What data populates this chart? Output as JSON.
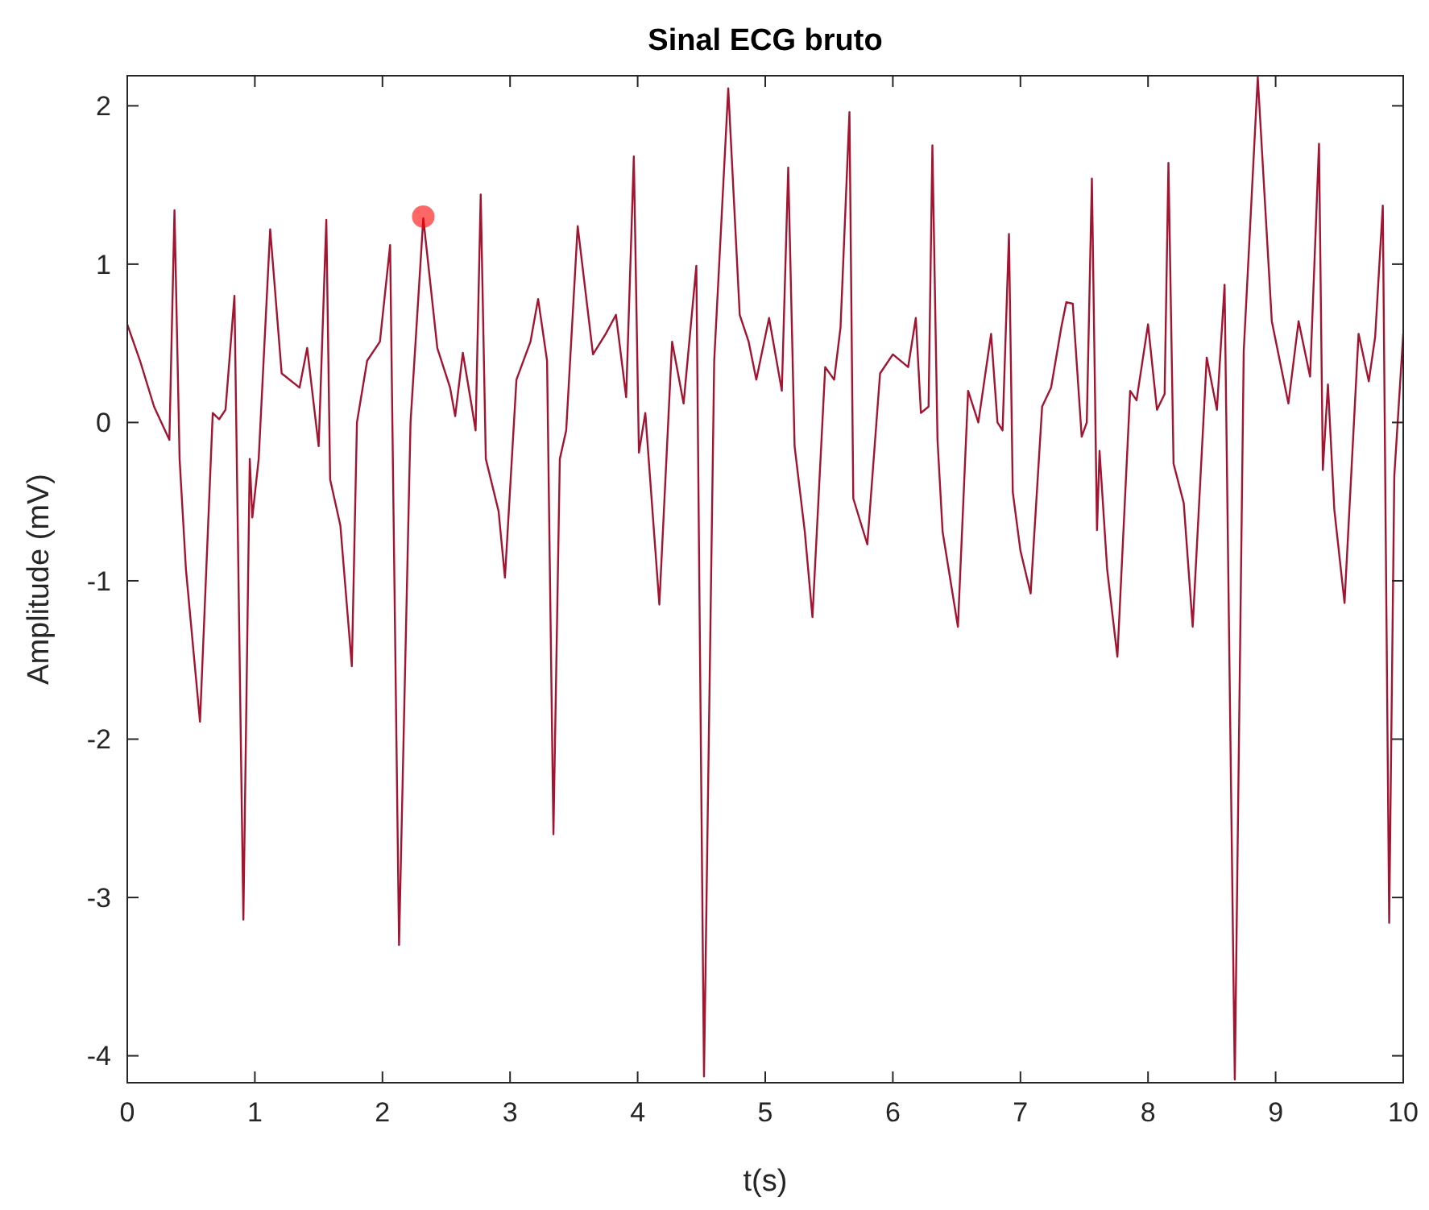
{
  "chart_data": {
    "type": "line",
    "title": "Sinal ECG bruto",
    "xlabel": "t(s)",
    "ylabel": "Amplitude (mV)",
    "xlim": [
      0,
      10
    ],
    "ylim": [
      -4.17,
      2.19
    ],
    "xticks": [
      0,
      1,
      2,
      3,
      4,
      5,
      6,
      7,
      8,
      9,
      10
    ],
    "yticks": [
      -4,
      -3,
      -2,
      -1,
      0,
      1,
      2
    ],
    "grid": false,
    "series": [
      {
        "color": "#a2142f",
        "x": [
          0,
          0.1,
          0.21,
          0.33,
          0.37,
          0.41,
          0.46,
          0.57,
          0.67,
          0.72,
          0.77,
          0.84,
          0.91,
          0.96,
          0.98,
          1.03,
          1.12,
          1.21,
          1.35,
          1.41,
          1.5,
          1.56,
          1.59,
          1.67,
          1.76,
          1.8,
          1.88,
          1.98,
          2.06,
          2.13,
          2.22,
          2.32,
          2.43,
          2.53,
          2.57,
          2.63,
          2.7,
          2.73,
          2.77,
          2.81,
          2.91,
          2.96,
          3.05,
          3.16,
          3.22,
          3.29,
          3.34,
          3.39,
          3.44,
          3.53,
          3.65,
          3.75,
          3.83,
          3.91,
          3.97,
          4.01,
          4.06,
          4.17,
          4.27,
          4.36,
          4.46,
          4.52,
          4.6,
          4.71,
          4.8,
          4.87,
          4.93,
          5.03,
          5.13,
          5.18,
          5.23,
          5.31,
          5.37,
          5.47,
          5.54,
          5.59,
          5.66,
          5.69,
          5.8,
          5.9,
          6,
          6.12,
          6.18,
          6.22,
          6.28,
          6.31,
          6.35,
          6.39,
          6.51,
          6.59,
          6.67,
          6.77,
          6.82,
          6.86,
          6.91,
          6.94,
          7,
          7.08,
          7.17,
          7.24,
          7.32,
          7.36,
          7.41,
          7.48,
          7.52,
          7.56,
          7.6,
          7.62,
          7.68,
          7.76,
          7.86,
          7.91,
          8,
          8.07,
          8.13,
          8.16,
          8.2,
          8.28,
          8.35,
          8.46,
          8.54,
          8.6,
          8.68,
          8.75,
          8.86,
          8.97,
          9.1,
          9.18,
          9.27,
          9.34,
          9.37,
          9.41,
          9.46,
          9.54,
          9.65,
          9.73,
          9.78,
          9.84,
          9.89,
          9.93,
          10
        ],
        "values": [
          0.62,
          0.39,
          0.1,
          -0.11,
          1.34,
          -0.23,
          -0.93,
          -1.89,
          0.06,
          0.02,
          0.08,
          0.8,
          -3.14,
          -0.23,
          -0.6,
          -0.23,
          1.22,
          0.31,
          0.22,
          0.47,
          -0.15,
          1.28,
          -0.36,
          -0.65,
          -1.54,
          0,
          0.39,
          0.51,
          1.12,
          -3.3,
          0,
          1.29,
          0.47,
          0.22,
          0.04,
          0.44,
          0.1,
          -0.05,
          1.44,
          -0.23,
          -0.56,
          -0.98,
          0.27,
          0.51,
          0.78,
          0.39,
          -2.6,
          -0.23,
          -0.05,
          1.24,
          0.43,
          0.56,
          0.68,
          0.16,
          1.68,
          -0.19,
          0.06,
          -1.15,
          0.51,
          0.12,
          0.99,
          -4.13,
          0.39,
          2.11,
          0.68,
          0.51,
          0.27,
          0.66,
          0.2,
          1.61,
          -0.15,
          -0.69,
          -1.23,
          0.35,
          0.27,
          0.6,
          1.96,
          -0.48,
          -0.77,
          0.31,
          0.43,
          0.35,
          0.66,
          0.06,
          0.1,
          1.75,
          -0.11,
          -0.69,
          -1.29,
          0.2,
          0,
          0.56,
          0,
          -0.05,
          1.19,
          -0.44,
          -0.81,
          -1.08,
          0.1,
          0.22,
          0.6,
          0.76,
          0.75,
          -0.09,
          0,
          1.54,
          -0.68,
          -0.18,
          -0.93,
          -1.48,
          0.2,
          0.14,
          0.62,
          0.08,
          0.18,
          1.64,
          -0.26,
          -0.51,
          -1.29,
          0.41,
          0.08,
          0.87,
          -4.15,
          0.45,
          2.18,
          0.64,
          0.12,
          0.64,
          0.29,
          1.76,
          -0.3,
          0.24,
          -0.55,
          -1.14,
          0.56,
          0.26,
          0.54,
          1.37,
          -3.16,
          -0.34,
          0.56
        ]
      },
      {
        "type": "scatter",
        "color": "#ff0000",
        "marker": "circle",
        "x": [
          2.32
        ],
        "values": [
          1.3
        ]
      }
    ]
  }
}
